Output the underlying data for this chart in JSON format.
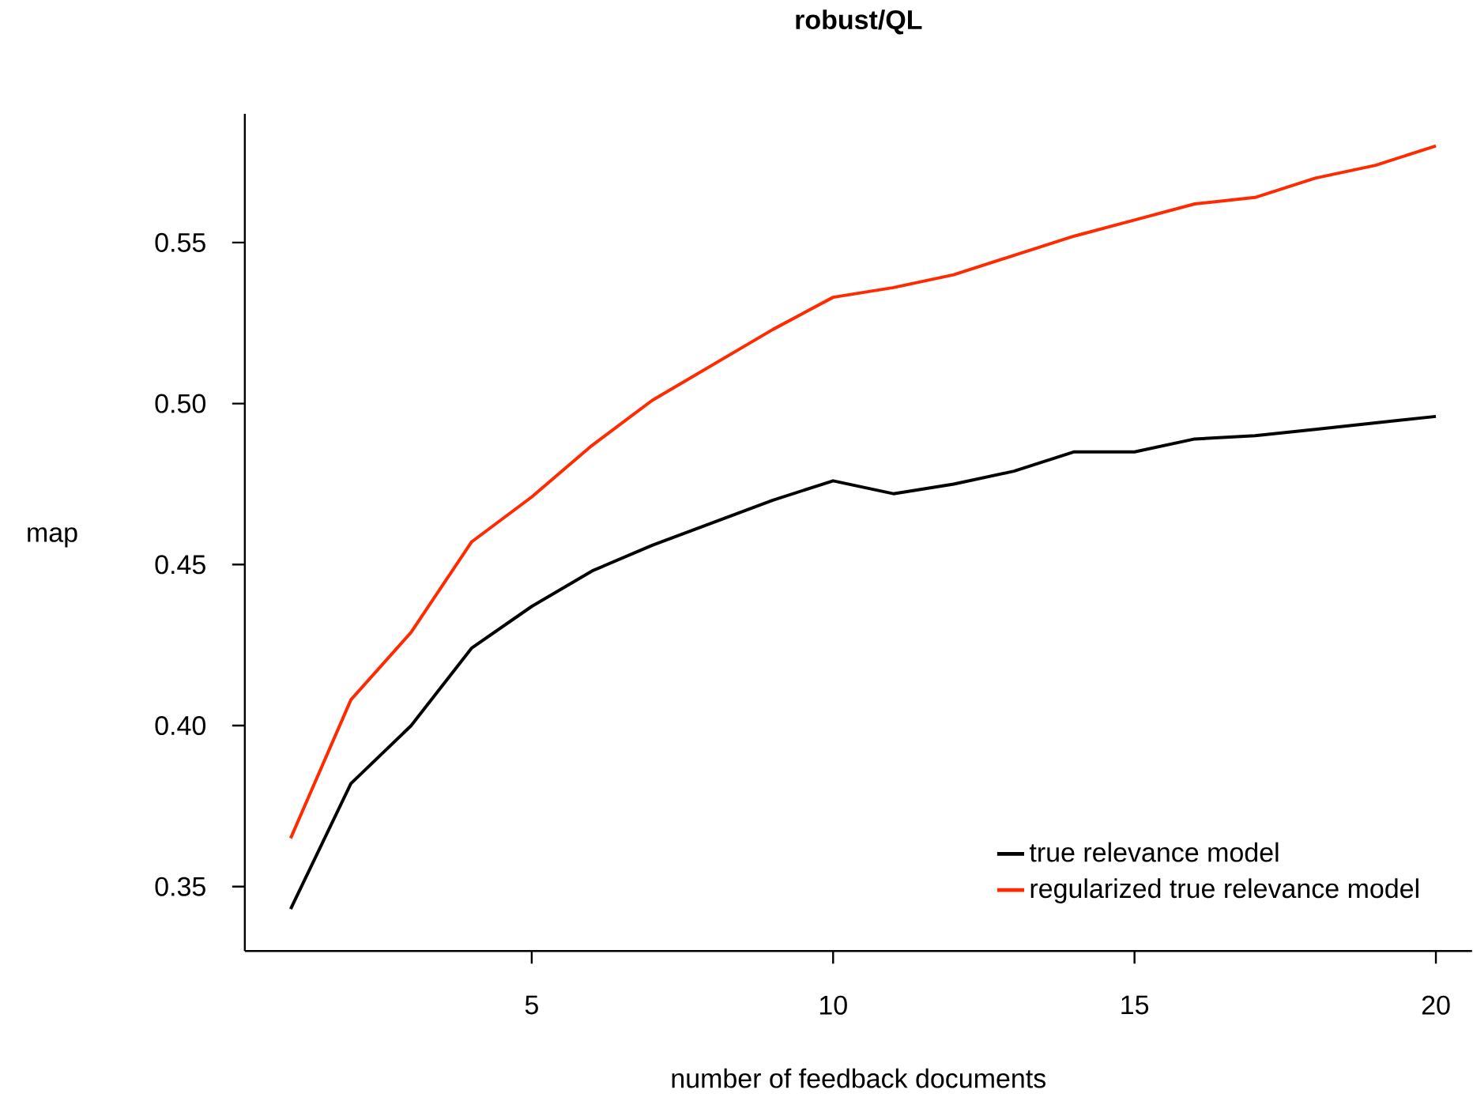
{
  "chart_data": {
    "type": "line",
    "title": "robust/QL",
    "xlabel": "number of feedback documents",
    "ylabel": "map",
    "x": [
      1,
      2,
      3,
      4,
      5,
      6,
      7,
      8,
      9,
      10,
      11,
      12,
      13,
      14,
      15,
      16,
      17,
      18,
      19,
      20
    ],
    "series": [
      {
        "name": "true relevance model",
        "color": "#000000",
        "values": [
          0.343,
          0.382,
          0.4,
          0.424,
          0.437,
          0.448,
          0.456,
          0.463,
          0.47,
          0.476,
          0.472,
          0.475,
          0.479,
          0.485,
          0.485,
          0.489,
          0.49,
          0.492,
          0.494,
          0.496
        ]
      },
      {
        "name": "regularized true relevance model",
        "color": "#ff2a00",
        "values": [
          0.365,
          0.408,
          0.429,
          0.457,
          0.471,
          0.487,
          0.501,
          0.512,
          0.523,
          0.533,
          0.536,
          0.54,
          0.546,
          0.552,
          0.557,
          0.562,
          0.564,
          0.57,
          0.574,
          0.58
        ]
      }
    ],
    "xlim": [
      0.24,
      20.6
    ],
    "ylim": [
      0.33,
      0.59
    ],
    "xticks": [
      5,
      10,
      15,
      20
    ],
    "yticks": [
      0.35,
      {
        "value": 0.4,
        "label": "0.40"
      },
      0.45,
      {
        "value": 0.5,
        "label": "0.50"
      },
      0.55
    ],
    "legend": "bottom right",
    "line_style": "solid"
  }
}
